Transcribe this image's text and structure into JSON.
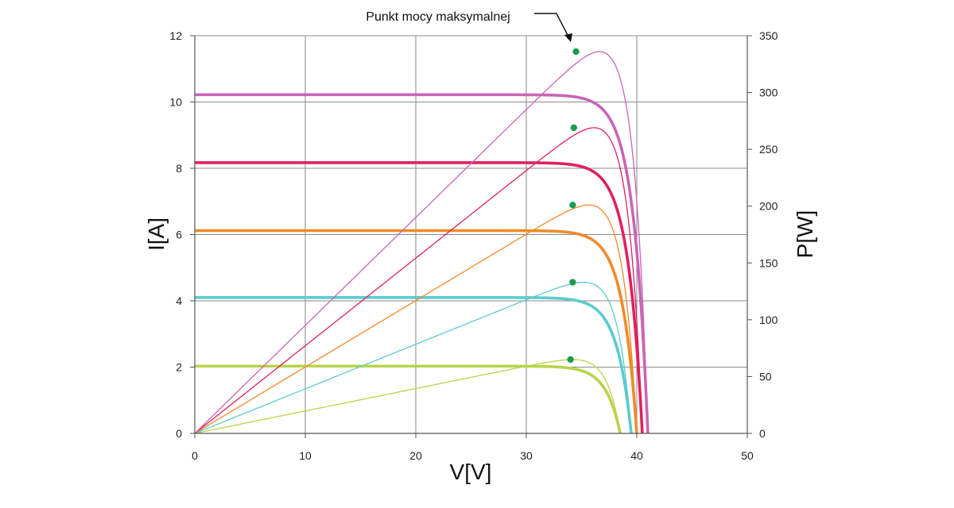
{
  "chart_data": {
    "type": "line",
    "title": "",
    "xlabel": "V[V]",
    "ylabel_left": "I[A]",
    "ylabel_right": "P[W]",
    "xlim": [
      0,
      50
    ],
    "ylim_left": [
      0,
      12
    ],
    "ylim_right": [
      0,
      350
    ],
    "x_ticks": [
      "0",
      "10",
      "20",
      "30",
      "40",
      "50"
    ],
    "y_left_ticks": [
      "0",
      "2",
      "4",
      "6",
      "8",
      "10",
      "12"
    ],
    "y_right_ticks": [
      "0",
      "50",
      "100",
      "150",
      "200",
      "250",
      "300",
      "350"
    ],
    "grid": true,
    "annotation": "Punkt mocy maksymalnej",
    "series": [
      {
        "color": "#b8d44a",
        "isc": 2.03,
        "voc": 38.5,
        "vmp": 34.0,
        "pmax": 65
      },
      {
        "color": "#5ccbd0",
        "isc": 4.1,
        "voc": 39.5,
        "vmp": 34.2,
        "pmax": 133
      },
      {
        "color": "#f08a2c",
        "isc": 6.12,
        "voc": 40.0,
        "vmp": 34.2,
        "pmax": 201
      },
      {
        "color": "#e0215e",
        "isc": 8.17,
        "voc": 40.5,
        "vmp": 34.3,
        "pmax": 269
      },
      {
        "color": "#c965b8",
        "isc": 10.22,
        "voc": 41.0,
        "vmp": 34.5,
        "pmax": 336
      }
    ],
    "max_power_point_color": "#1f9a4f"
  }
}
